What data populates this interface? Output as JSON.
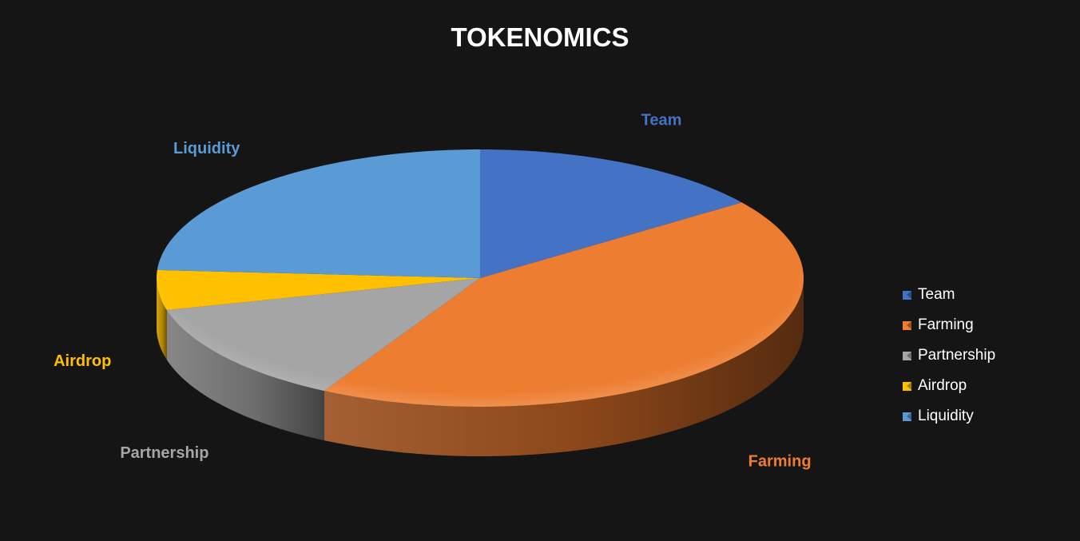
{
  "chart_data": {
    "type": "pie",
    "title": "TOKENOMICS",
    "slices": [
      {
        "label": "Team",
        "value": 15,
        "color": "#4472C4",
        "side_color": "#2E4F8A"
      },
      {
        "label": "Farming",
        "value": 43,
        "color": "#ED7D31",
        "side_color": "#9A4E1C"
      },
      {
        "label": "Partnership",
        "value": 13,
        "color": "#A5A5A5",
        "side_color": "#7A7A7A"
      },
      {
        "label": "Airdrop",
        "value": 5,
        "color": "#FFC000",
        "side_color": "#C99700"
      },
      {
        "label": "Liquidity",
        "value": 24,
        "color": "#5B9BD5",
        "side_color": "#3D6F9E"
      }
    ],
    "legend_position": "right",
    "three_d": true
  }
}
